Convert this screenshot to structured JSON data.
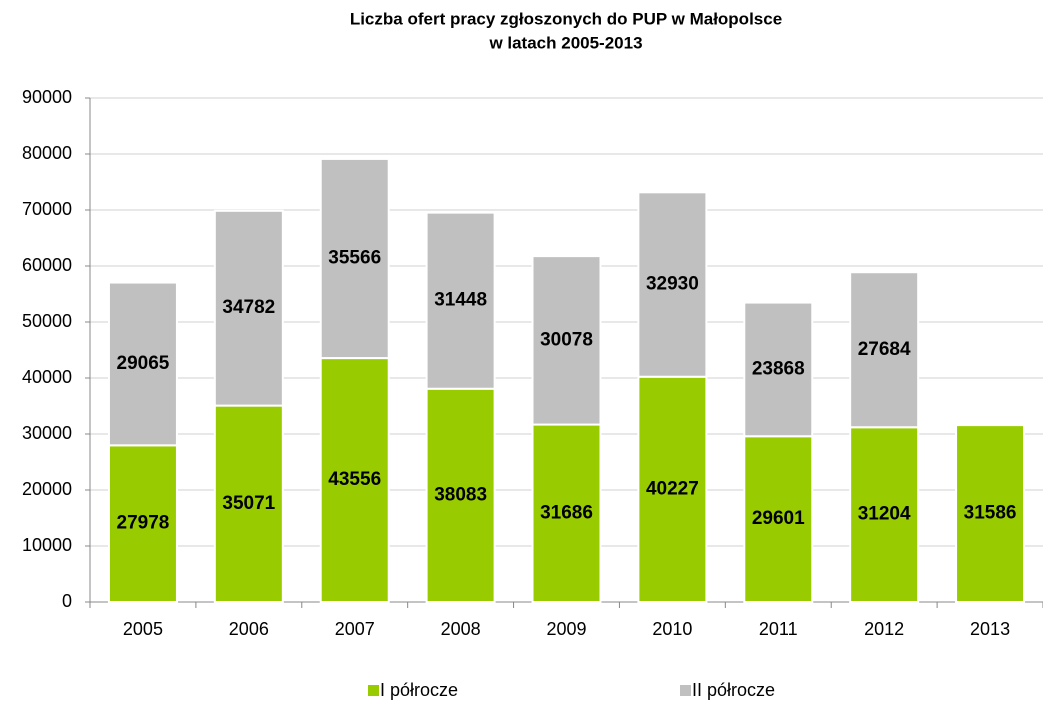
{
  "chart_data": {
    "type": "stacked_bar",
    "title": [
      "Liczba ofert pracy zgłoszonych do PUP w Małopolsce",
      "w latach 2005-2013"
    ],
    "categories": [
      "2005",
      "2006",
      "2007",
      "2008",
      "2009",
      "2010",
      "2011",
      "2012",
      "2013"
    ],
    "series": [
      {
        "name": "I półrocze",
        "color": "#99cc00",
        "values": [
          27978,
          35071,
          43556,
          38083,
          31686,
          40227,
          29601,
          31204,
          31586
        ]
      },
      {
        "name": "II półrocze",
        "color": "#c0c0c0",
        "values": [
          29065,
          34782,
          35566,
          31448,
          30078,
          32930,
          23868,
          27684,
          null
        ]
      }
    ],
    "ylim": [
      0,
      90000
    ],
    "yticks": [
      0,
      10000,
      20000,
      30000,
      40000,
      50000,
      60000,
      70000,
      80000,
      90000
    ],
    "grid": true
  }
}
